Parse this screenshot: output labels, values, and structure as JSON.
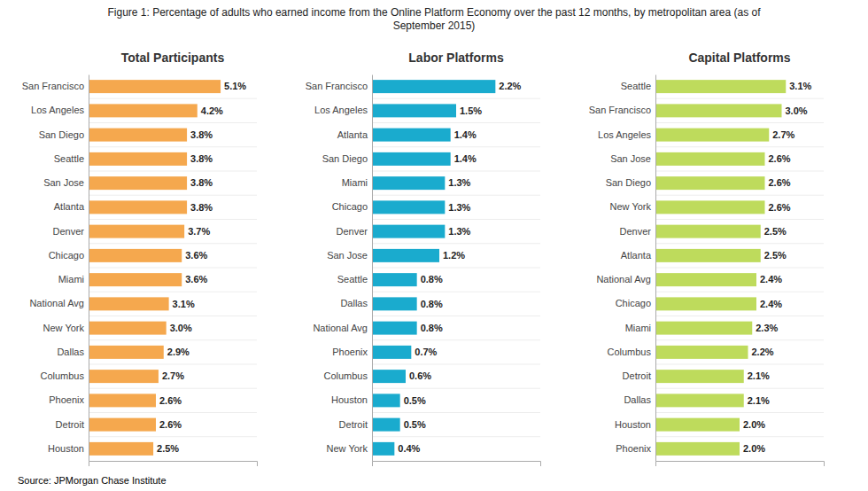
{
  "title": "Figure 1: Percentage of adults who earned income from the Online Platform Economy over the past 12 months, by metropolitan area (as of\nSeptember 2015)",
  "source": "Source: JPMorgan Chase Institute",
  "chart_data": [
    {
      "type": "bar",
      "orientation": "horizontal",
      "title": "Total Participants",
      "categories": [
        "San Francisco",
        "Los Angeles",
        "San Diego",
        "Seattle",
        "San Jose",
        "Atlanta",
        "Denver",
        "Chicago",
        "Miami",
        "National Avg",
        "New York",
        "Dallas",
        "Columbus",
        "Phoenix",
        "Detroit",
        "Houston"
      ],
      "values": [
        5.1,
        4.2,
        3.8,
        3.8,
        3.8,
        3.8,
        3.7,
        3.6,
        3.6,
        3.1,
        3.0,
        2.9,
        2.7,
        2.6,
        2.6,
        2.5
      ],
      "value_labels": [
        "5.1%",
        "4.2%",
        "3.8%",
        "3.8%",
        "3.8%",
        "3.8%",
        "3.7%",
        "3.6%",
        "3.6%",
        "3.1%",
        "3.0%",
        "2.9%",
        "2.7%",
        "2.6%",
        "2.6%",
        "2.5%"
      ],
      "color": "#F5A84E",
      "xlim": [
        0,
        6.5
      ],
      "data_labels": true,
      "tick_labels": "y",
      "grid": false
    },
    {
      "type": "bar",
      "orientation": "horizontal",
      "title": "Labor Platforms",
      "categories": [
        "San Francisco",
        "Los Angeles",
        "Atlanta",
        "San Diego",
        "Miami",
        "Chicago",
        "Denver",
        "San Jose",
        "Seattle",
        "Dallas",
        "National Avg",
        "Phoenix",
        "Columbus",
        "Houston",
        "Detroit",
        "New York"
      ],
      "values": [
        2.2,
        1.5,
        1.4,
        1.4,
        1.3,
        1.3,
        1.3,
        1.2,
        0.8,
        0.8,
        0.8,
        0.7,
        0.6,
        0.5,
        0.5,
        0.4
      ],
      "value_labels": [
        "2.2%",
        "1.5%",
        "1.4%",
        "1.4%",
        "1.3%",
        "1.3%",
        "1.3%",
        "1.2%",
        "0.8%",
        "0.8%",
        "0.8%",
        "0.7%",
        "0.6%",
        "0.5%",
        "0.5%",
        "0.4%"
      ],
      "color": "#1AABCE",
      "xlim": [
        0,
        3.0
      ],
      "data_labels": true,
      "tick_labels": "y",
      "grid": false
    },
    {
      "type": "bar",
      "orientation": "horizontal",
      "title": "Capital Platforms",
      "categories": [
        "Seattle",
        "San Francisco",
        "Los Angeles",
        "San Jose",
        "San Diego",
        "New York",
        "Denver",
        "Atlanta",
        "National Avg",
        "Chicago",
        "Miami",
        "Columbus",
        "Detroit",
        "Dallas",
        "Houston",
        "Phoenix"
      ],
      "values": [
        3.1,
        3.0,
        2.7,
        2.6,
        2.6,
        2.6,
        2.5,
        2.5,
        2.4,
        2.4,
        2.3,
        2.2,
        2.1,
        2.1,
        2.0,
        2.0
      ],
      "value_labels": [
        "3.1%",
        "3.0%",
        "2.7%",
        "2.6%",
        "2.6%",
        "2.6%",
        "2.5%",
        "2.5%",
        "2.4%",
        "2.4%",
        "2.3%",
        "2.2%",
        "2.1%",
        "2.1%",
        "2.0%",
        "2.0%"
      ],
      "color": "#BEDB5C",
      "xlim": [
        0,
        4.0
      ],
      "data_labels": true,
      "tick_labels": "y",
      "grid": false
    }
  ]
}
